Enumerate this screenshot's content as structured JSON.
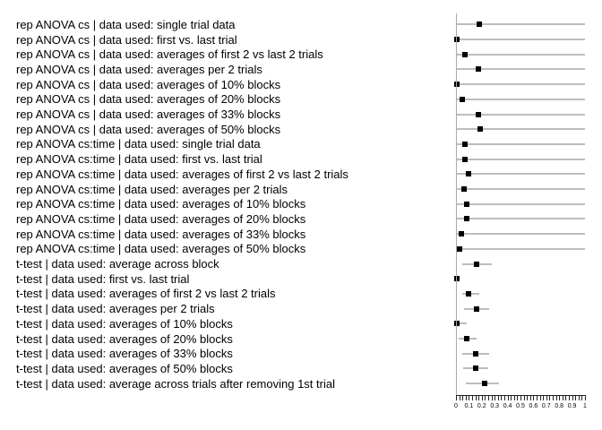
{
  "chart_data": {
    "type": "scatter",
    "subtype": "dot-with-ci-forest-plot",
    "title": "",
    "xlabel": "",
    "ylabel": "",
    "xlim": [
      0,
      1
    ],
    "x_tick_labels": [
      "0",
      "0.1",
      "0.2",
      "0.3",
      "0.4",
      "0.5",
      "0.6",
      "0.7",
      "0.8",
      "0.9",
      "1"
    ],
    "x_minor_tick_step": 0.025,
    "grid": false,
    "legend": false,
    "colors": {
      "marker": "#000000",
      "error_bar": "#bdbdbd",
      "axis": "#222222",
      "text": "#000000",
      "background": "#ffffff"
    },
    "rows": [
      {
        "label": "rep ANOVA cs | data used: single trial data",
        "value": 0.18,
        "ci_low": 0.0,
        "ci_high": 1.0
      },
      {
        "label": "rep ANOVA cs | data used: first vs. last trial",
        "value": 0.005,
        "ci_low": 0.0,
        "ci_high": 1.0
      },
      {
        "label": "rep ANOVA cs | data used: averages of first 2 vs last 2 trials",
        "value": 0.07,
        "ci_low": 0.0,
        "ci_high": 1.0
      },
      {
        "label": "rep ANOVA cs | data used: averages per 2 trials",
        "value": 0.175,
        "ci_low": 0.0,
        "ci_high": 1.0
      },
      {
        "label": "rep ANOVA cs | data used: averages of 10% blocks",
        "value": 0.01,
        "ci_low": 0.0,
        "ci_high": 1.0
      },
      {
        "label": "rep ANOVA cs | data used: averages of 20% blocks",
        "value": 0.05,
        "ci_low": 0.0,
        "ci_high": 1.0
      },
      {
        "label": "rep ANOVA cs | data used: averages of 33% blocks",
        "value": 0.175,
        "ci_low": 0.0,
        "ci_high": 1.0
      },
      {
        "label": "rep ANOVA cs | data used: averages of 50% blocks",
        "value": 0.185,
        "ci_low": 0.0,
        "ci_high": 1.0
      },
      {
        "label": "rep ANOVA cs:time | data used: single trial data",
        "value": 0.07,
        "ci_low": 0.0,
        "ci_high": 1.0
      },
      {
        "label": "rep ANOVA cs:time | data used: first vs. last trial",
        "value": 0.07,
        "ci_low": 0.0,
        "ci_high": 1.0
      },
      {
        "label": "rep ANOVA cs:time | data used: averages of first 2 vs last 2 trials",
        "value": 0.095,
        "ci_low": 0.0,
        "ci_high": 1.0
      },
      {
        "label": "rep ANOVA cs:time | data used: averages per 2 trials",
        "value": 0.06,
        "ci_low": 0.0,
        "ci_high": 1.0
      },
      {
        "label": "rep ANOVA cs:time | data used: averages of 10% blocks",
        "value": 0.085,
        "ci_low": 0.0,
        "ci_high": 1.0
      },
      {
        "label": "rep ANOVA cs:time | data used: averages of 20% blocks",
        "value": 0.08,
        "ci_low": 0.0,
        "ci_high": 1.0
      },
      {
        "label": "rep ANOVA cs:time | data used: averages of 33% blocks",
        "value": 0.045,
        "ci_low": 0.0,
        "ci_high": 1.0
      },
      {
        "label": "rep ANOVA cs:time | data used: averages of 50% blocks",
        "value": 0.03,
        "ci_low": 0.0,
        "ci_high": 1.0
      },
      {
        "label": "t-test | data used: average across block",
        "value": 0.16,
        "ci_low": 0.05,
        "ci_high": 0.28
      },
      {
        "label": "t-test | data used: first vs. last trial",
        "value": 0.005,
        "ci_low": 0.0,
        "ci_high": 0.02
      },
      {
        "label": "t-test | data used: averages of first 2 vs last 2 trials",
        "value": 0.1,
        "ci_low": 0.05,
        "ci_high": 0.18
      },
      {
        "label": "t-test | data used: averages per 2 trials",
        "value": 0.16,
        "ci_low": 0.06,
        "ci_high": 0.26
      },
      {
        "label": "t-test | data used: averages of 10% blocks",
        "value": 0.01,
        "ci_low": 0.0,
        "ci_high": 0.08
      },
      {
        "label": "t-test | data used: averages of 20% blocks",
        "value": 0.08,
        "ci_low": 0.02,
        "ci_high": 0.16
      },
      {
        "label": "t-test | data used: averages of 33% blocks",
        "value": 0.155,
        "ci_low": 0.05,
        "ci_high": 0.26
      },
      {
        "label": "t-test | data used: averages of 50% blocks",
        "value": 0.155,
        "ci_low": 0.055,
        "ci_high": 0.25
      },
      {
        "label": "t-test | data used: average across trials after removing 1st trial",
        "value": 0.22,
        "ci_low": 0.075,
        "ci_high": 0.335
      }
    ]
  }
}
